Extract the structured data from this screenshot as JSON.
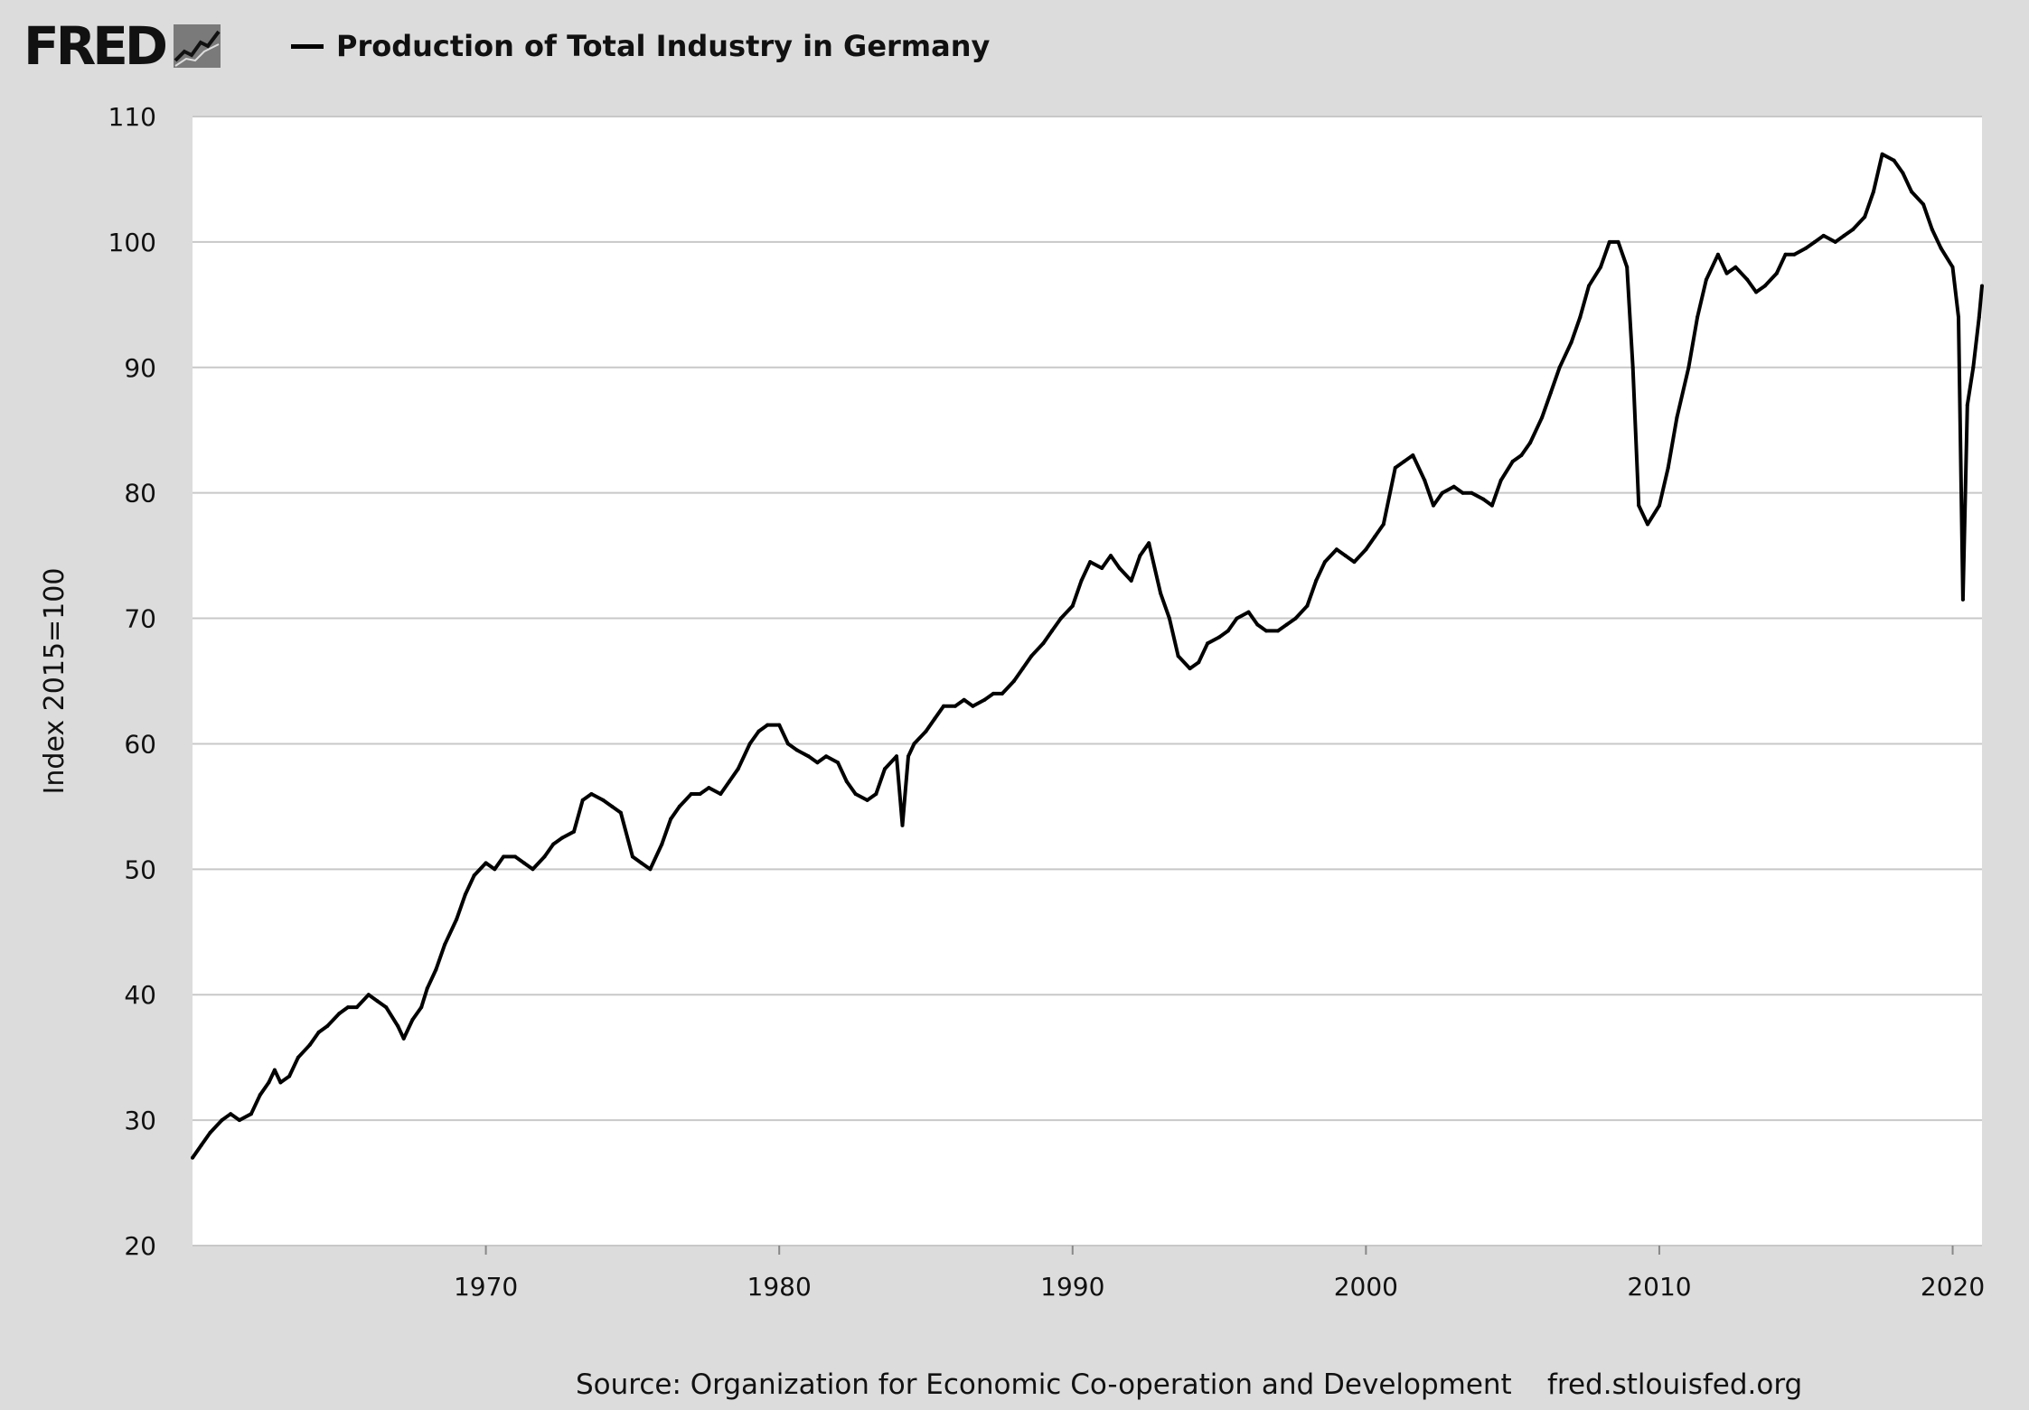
{
  "header": {
    "logo_text": "FRED",
    "logo_icon": "line-chart-icon"
  },
  "footer": {
    "source": "Source: Organization for Economic Co-operation and Development",
    "site": "fred.stlouisfed.org"
  },
  "chart_data": {
    "type": "line",
    "title": "",
    "xlabel": "",
    "ylabel": "Index 2015=100",
    "xlim": [
      1960.0,
      2021.0
    ],
    "ylim": [
      20,
      110
    ],
    "yticks": [
      20,
      30,
      40,
      50,
      60,
      70,
      80,
      90,
      100,
      110
    ],
    "xticks": [
      1970,
      1980,
      1990,
      2000,
      2010,
      2020
    ],
    "grid": "horizontal",
    "legend": "top-left",
    "line_color": "#000000",
    "series": [
      {
        "name": "Production of Total Industry in Germany",
        "x": [
          1960.0,
          1960.3,
          1960.6,
          1961.0,
          1961.3,
          1961.6,
          1962.0,
          1962.3,
          1962.6,
          1962.8,
          1963.0,
          1963.3,
          1963.6,
          1964.0,
          1964.3,
          1964.6,
          1965.0,
          1965.3,
          1965.6,
          1966.0,
          1966.3,
          1966.6,
          1967.0,
          1967.2,
          1967.5,
          1967.8,
          1968.0,
          1968.3,
          1968.6,
          1969.0,
          1969.3,
          1969.6,
          1970.0,
          1970.3,
          1970.6,
          1971.0,
          1971.3,
          1971.6,
          1972.0,
          1972.3,
          1972.6,
          1973.0,
          1973.3,
          1973.6,
          1974.0,
          1974.3,
          1974.6,
          1975.0,
          1975.3,
          1975.6,
          1976.0,
          1976.3,
          1976.6,
          1977.0,
          1977.3,
          1977.6,
          1978.0,
          1978.3,
          1978.6,
          1979.0,
          1979.3,
          1979.6,
          1980.0,
          1980.3,
          1980.6,
          1981.0,
          1981.3,
          1981.6,
          1982.0,
          1982.3,
          1982.6,
          1983.0,
          1983.3,
          1983.6,
          1984.0,
          1984.2,
          1984.4,
          1984.6,
          1985.0,
          1985.3,
          1985.6,
          1986.0,
          1986.3,
          1986.6,
          1987.0,
          1987.3,
          1987.6,
          1988.0,
          1988.3,
          1988.6,
          1989.0,
          1989.3,
          1989.6,
          1990.0,
          1990.3,
          1990.6,
          1991.0,
          1991.3,
          1991.6,
          1992.0,
          1992.3,
          1992.6,
          1993.0,
          1993.3,
          1993.6,
          1994.0,
          1994.3,
          1994.6,
          1995.0,
          1995.3,
          1995.6,
          1996.0,
          1996.3,
          1996.6,
          1997.0,
          1997.3,
          1997.6,
          1998.0,
          1998.3,
          1998.6,
          1999.0,
          1999.3,
          1999.6,
          2000.0,
          2000.3,
          2000.6,
          2001.0,
          2001.3,
          2001.6,
          2002.0,
          2002.3,
          2002.6,
          2003.0,
          2003.3,
          2003.6,
          2004.0,
          2004.3,
          2004.6,
          2005.0,
          2005.3,
          2005.6,
          2006.0,
          2006.3,
          2006.6,
          2007.0,
          2007.3,
          2007.6,
          2008.0,
          2008.3,
          2008.6,
          2008.9,
          2009.1,
          2009.3,
          2009.6,
          2010.0,
          2010.3,
          2010.6,
          2011.0,
          2011.3,
          2011.6,
          2012.0,
          2012.3,
          2012.6,
          2013.0,
          2013.3,
          2013.6,
          2014.0,
          2014.3,
          2014.6,
          2015.0,
          2015.3,
          2015.6,
          2016.0,
          2016.3,
          2016.6,
          2017.0,
          2017.3,
          2017.6,
          2018.0,
          2018.3,
          2018.6,
          2019.0,
          2019.3,
          2019.6,
          2020.0,
          2020.2,
          2020.35,
          2020.5,
          2020.7,
          2020.9,
          2021.0
        ],
        "values": [
          27,
          28,
          29,
          30,
          30.5,
          30,
          30.5,
          32,
          33,
          34,
          33,
          33.5,
          35,
          36,
          37,
          37.5,
          38.5,
          39,
          39,
          40,
          39.5,
          39,
          37.5,
          36.5,
          38,
          39,
          40.5,
          42,
          44,
          46,
          48,
          49.5,
          50.5,
          50,
          51,
          51,
          50.5,
          50,
          51,
          52,
          52.5,
          53,
          55.5,
          56,
          55.5,
          55,
          54.5,
          51,
          50.5,
          50,
          52,
          54,
          55,
          56,
          56,
          56.5,
          56,
          57,
          58,
          60,
          61,
          61.5,
          61.5,
          60,
          59.5,
          59,
          58.5,
          59,
          58.5,
          57,
          56,
          55.5,
          56,
          58,
          59,
          53.5,
          59,
          60,
          61,
          62,
          63,
          63,
          63.5,
          63,
          63.5,
          64,
          64,
          65,
          66,
          67,
          68,
          69,
          70,
          71,
          73,
          74.5,
          74,
          75,
          74,
          73,
          75,
          76,
          72,
          70,
          67,
          66,
          66.5,
          68,
          68.5,
          69,
          70,
          70.5,
          69.5,
          69,
          69,
          69.5,
          70,
          71,
          73,
          74.5,
          75.5,
          75,
          74.5,
          75.5,
          76.5,
          77.5,
          82,
          82.5,
          83,
          81,
          79,
          80,
          80.5,
          80,
          80,
          79.5,
          79,
          81,
          82.5,
          83,
          84,
          86,
          88,
          90,
          92,
          94,
          96.5,
          98,
          100,
          100,
          98,
          90,
          79,
          77.5,
          79,
          82,
          86,
          90,
          94,
          97,
          99,
          97.5,
          98,
          97,
          96,
          96.5,
          97.5,
          99,
          99,
          99.5,
          100,
          100.5,
          100,
          100.5,
          101,
          102,
          104,
          107,
          106.5,
          105.5,
          104,
          103,
          101,
          99.5,
          98,
          94,
          71.5,
          87,
          90,
          94,
          96.5
        ]
      }
    ]
  }
}
